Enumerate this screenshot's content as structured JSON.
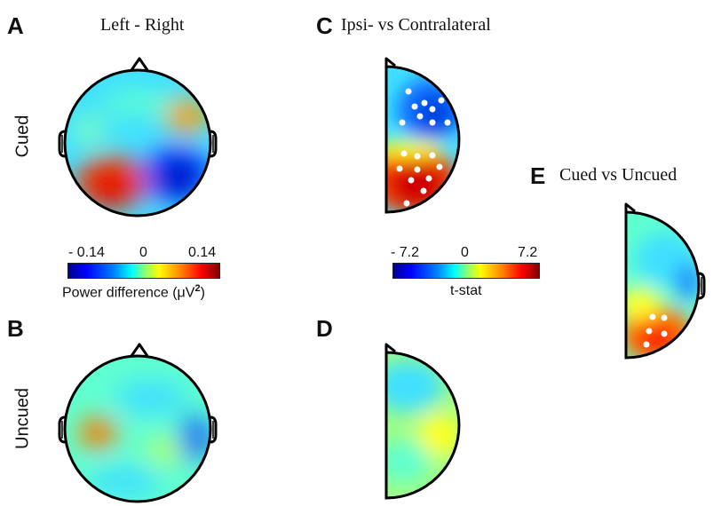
{
  "panels": {
    "A": {
      "letter": "A",
      "title": "Left - Right",
      "row_label": "Cued"
    },
    "B": {
      "letter": "B",
      "row_label": "Uncued"
    },
    "C": {
      "letter": "C",
      "title": "Ipsi- vs Contralateral"
    },
    "D": {
      "letter": "D"
    },
    "E": {
      "letter": "E",
      "title": "Cued vs Uncued"
    }
  },
  "colorbar_power": {
    "ticks": [
      "- 0.14",
      "0",
      "0.14"
    ],
    "label_prefix": "Power difference (μV",
    "label_sup": "2",
    "label_suffix": ")"
  },
  "colorbar_tstat": {
    "ticks": [
      "- 7.2",
      "0",
      "7.2"
    ],
    "label": "t-stat"
  },
  "colors": {
    "blue": "#0000ff",
    "cyan": "#00ffff",
    "yellow": "#ffff00",
    "red": "#ff0000",
    "dark_red": "#800000",
    "electrode": "#ffffff"
  }
}
